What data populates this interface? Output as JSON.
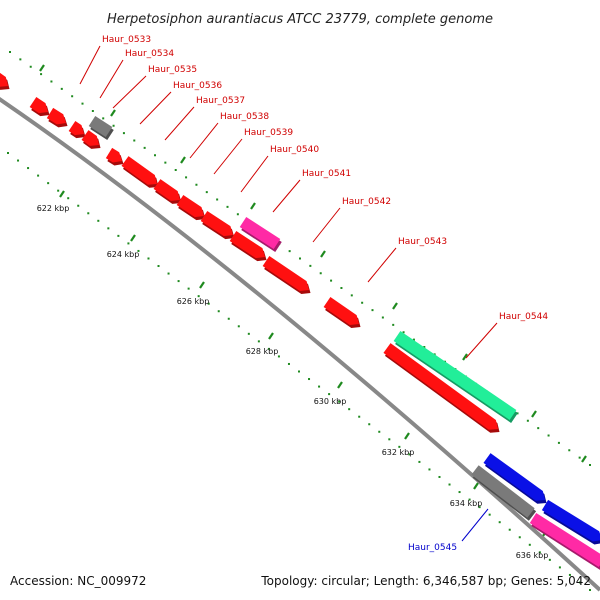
{
  "title": "Herpetosiphon aurantiacus ATCC 23779, complete genome",
  "accession_text": "Accession: NC_009972",
  "topology_text": "Topology: circular; Length: 6,346,587 bp; Genes: 5,042",
  "ticks": [
    "622 kbp",
    "624 kbp",
    "626 kbp",
    "628 kbp",
    "630 kbp",
    "632 kbp",
    "634 kbp",
    "636 kbp"
  ],
  "colors": {
    "backbone": "#888888",
    "tick": "#1f8a1f",
    "red_gene": "#ff1010",
    "gray_gene": "#7a7a7a",
    "magenta_gene": "#ff2aa5",
    "green_gene": "#22ee99",
    "blue_gene": "#0a10e6",
    "red_label": "#d00000",
    "blue_label": "#0000cc"
  },
  "genes": [
    {
      "name": "Haur_0533",
      "color": "red"
    },
    {
      "name": "Haur_0534",
      "color": "red"
    },
    {
      "name": "Haur_0535",
      "color": "gray"
    },
    {
      "name": "Haur_0536",
      "color": "red"
    },
    {
      "name": "Haur_0537",
      "color": "red"
    },
    {
      "name": "Haur_0538",
      "color": "red"
    },
    {
      "name": "Haur_0539",
      "color": "red"
    },
    {
      "name": "Haur_0540",
      "color": "magenta"
    },
    {
      "name": "Haur_0541",
      "color": "red"
    },
    {
      "name": "Haur_0542",
      "color": "red"
    },
    {
      "name": "Haur_0543",
      "color": "red"
    },
    {
      "name": "Haur_0544",
      "color": "green"
    },
    {
      "name": "Haur_0545",
      "color": "blue"
    }
  ]
}
